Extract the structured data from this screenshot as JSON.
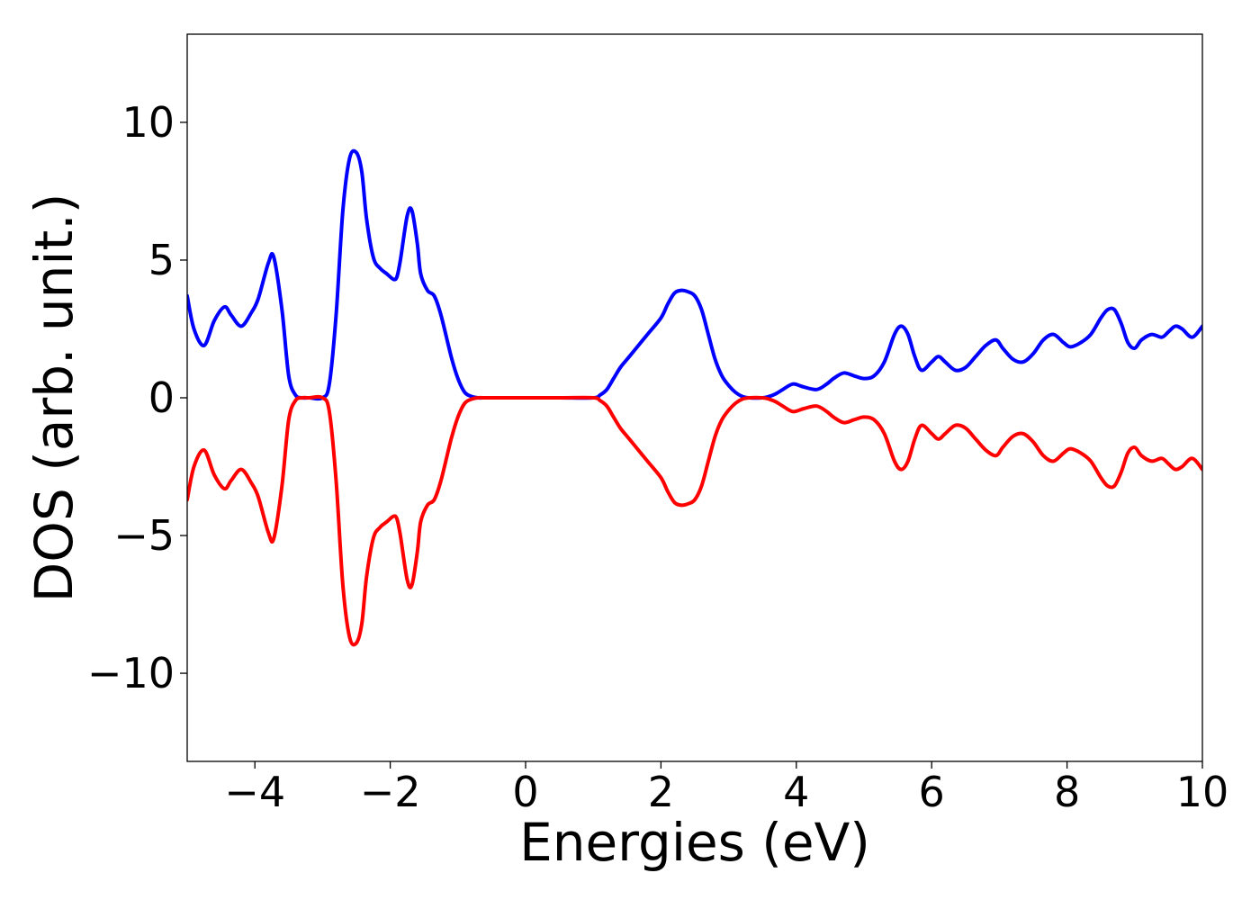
{
  "chart_data": {
    "type": "line",
    "title": "",
    "xlabel": "Energies (eV)",
    "ylabel": "DOS (arb. unit.)",
    "xlim": [
      -5,
      10
    ],
    "ylim": [
      -13.2,
      13.2
    ],
    "xticks": [
      -4,
      -2,
      0,
      2,
      4,
      6,
      8,
      10
    ],
    "xtick_labels": [
      "−4",
      "−2",
      "0",
      "2",
      "4",
      "6",
      "8",
      "10"
    ],
    "yticks": [
      -10,
      -5,
      0,
      5,
      10
    ],
    "ytick_labels": [
      "−10",
      "−5",
      "0",
      "5",
      "10"
    ],
    "grid": false,
    "legend": "none",
    "series": [
      {
        "color": "#0000ff",
        "x": [
          -5.0,
          -4.9,
          -4.75,
          -4.6,
          -4.45,
          -4.35,
          -4.2,
          -4.05,
          -3.95,
          -3.8,
          -3.72,
          -3.6,
          -3.5,
          -3.4,
          -3.3,
          -3.2,
          -3.0,
          -2.9,
          -2.8,
          -2.7,
          -2.6,
          -2.5,
          -2.42,
          -2.35,
          -2.25,
          -2.15,
          -2.05,
          -1.95,
          -1.9,
          -1.85,
          -1.75,
          -1.68,
          -1.6,
          -1.55,
          -1.45,
          -1.35,
          -1.25,
          -1.1,
          -1.0,
          -0.9,
          -0.8,
          -0.7,
          -0.6,
          -0.5,
          -0.3,
          0.0,
          0.5,
          1.0,
          1.1,
          1.2,
          1.3,
          1.4,
          1.5,
          1.6,
          1.8,
          2.0,
          2.1,
          2.2,
          2.3,
          2.4,
          2.5,
          2.6,
          2.7,
          2.8,
          2.9,
          3.0,
          3.1,
          3.2,
          3.3,
          3.5,
          3.6,
          3.7,
          3.8,
          3.95,
          4.1,
          4.3,
          4.45,
          4.55,
          4.7,
          4.85,
          5.0,
          5.15,
          5.3,
          5.45,
          5.55,
          5.65,
          5.75,
          5.85,
          6.0,
          6.1,
          6.2,
          6.35,
          6.5,
          6.65,
          6.8,
          6.95,
          7.05,
          7.2,
          7.35,
          7.5,
          7.65,
          7.8,
          7.95,
          8.05,
          8.2,
          8.35,
          8.5,
          8.6,
          8.7,
          8.8,
          8.9,
          9.0,
          9.1,
          9.25,
          9.4,
          9.5,
          9.6,
          9.7,
          9.85,
          10.0
        ],
        "y": [
          3.7,
          2.5,
          1.9,
          2.8,
          3.3,
          3.0,
          2.6,
          3.1,
          3.6,
          4.9,
          5.1,
          3.2,
          0.8,
          0.1,
          0.0,
          0.0,
          0.0,
          0.5,
          3.0,
          6.8,
          8.7,
          8.9,
          8.2,
          6.5,
          5.1,
          4.7,
          4.5,
          4.3,
          4.4,
          5.0,
          6.6,
          6.8,
          5.6,
          4.5,
          3.9,
          3.7,
          3.0,
          1.5,
          0.7,
          0.2,
          0.05,
          0.0,
          0.0,
          0.0,
          0.0,
          0.0,
          0.0,
          0.0,
          0.1,
          0.3,
          0.7,
          1.1,
          1.4,
          1.7,
          2.3,
          2.9,
          3.4,
          3.8,
          3.9,
          3.85,
          3.7,
          3.2,
          2.3,
          1.4,
          0.8,
          0.45,
          0.2,
          0.05,
          0.0,
          0.0,
          0.05,
          0.15,
          0.3,
          0.5,
          0.4,
          0.3,
          0.5,
          0.7,
          0.9,
          0.8,
          0.7,
          0.8,
          1.3,
          2.3,
          2.6,
          2.3,
          1.5,
          1.0,
          1.3,
          1.5,
          1.3,
          1.0,
          1.1,
          1.5,
          1.9,
          2.1,
          1.8,
          1.4,
          1.3,
          1.6,
          2.1,
          2.3,
          2.0,
          1.85,
          2.0,
          2.3,
          2.9,
          3.2,
          3.2,
          2.7,
          2.0,
          1.8,
          2.1,
          2.3,
          2.2,
          2.4,
          2.6,
          2.5,
          2.2,
          2.6
        ]
      },
      {
        "color": "#ff0000",
        "x": [
          -5.0,
          -4.9,
          -4.75,
          -4.6,
          -4.45,
          -4.35,
          -4.2,
          -4.05,
          -3.95,
          -3.8,
          -3.72,
          -3.6,
          -3.5,
          -3.4,
          -3.3,
          -3.2,
          -3.0,
          -2.9,
          -2.8,
          -2.7,
          -2.6,
          -2.5,
          -2.42,
          -2.35,
          -2.25,
          -2.15,
          -2.05,
          -1.95,
          -1.9,
          -1.85,
          -1.75,
          -1.68,
          -1.6,
          -1.55,
          -1.45,
          -1.35,
          -1.25,
          -1.1,
          -1.0,
          -0.9,
          -0.8,
          -0.7,
          -0.6,
          -0.5,
          -0.3,
          0.0,
          0.5,
          1.0,
          1.1,
          1.2,
          1.3,
          1.4,
          1.5,
          1.6,
          1.8,
          2.0,
          2.1,
          2.2,
          2.3,
          2.4,
          2.5,
          2.6,
          2.7,
          2.8,
          2.9,
          3.0,
          3.1,
          3.2,
          3.3,
          3.5,
          3.6,
          3.7,
          3.8,
          3.95,
          4.1,
          4.3,
          4.45,
          4.55,
          4.7,
          4.85,
          5.0,
          5.15,
          5.3,
          5.45,
          5.55,
          5.65,
          5.75,
          5.85,
          6.0,
          6.1,
          6.2,
          6.35,
          6.5,
          6.65,
          6.8,
          6.95,
          7.05,
          7.2,
          7.35,
          7.5,
          7.65,
          7.8,
          7.95,
          8.05,
          8.2,
          8.35,
          8.5,
          8.6,
          8.7,
          8.8,
          8.9,
          9.0,
          9.1,
          9.25,
          9.4,
          9.5,
          9.6,
          9.7,
          9.85,
          10.0
        ],
        "y": [
          -3.7,
          -2.5,
          -1.9,
          -2.8,
          -3.3,
          -3.0,
          -2.6,
          -3.1,
          -3.6,
          -4.9,
          -5.1,
          -3.2,
          -0.8,
          -0.1,
          0.0,
          0.0,
          0.0,
          -0.5,
          -3.0,
          -6.8,
          -8.7,
          -8.9,
          -8.2,
          -6.5,
          -5.1,
          -4.7,
          -4.5,
          -4.3,
          -4.4,
          -5.0,
          -6.6,
          -6.8,
          -5.6,
          -4.5,
          -3.9,
          -3.7,
          -3.0,
          -1.5,
          -0.7,
          -0.2,
          -0.05,
          0.0,
          0.0,
          0.0,
          0.0,
          0.0,
          0.0,
          0.0,
          -0.1,
          -0.3,
          -0.7,
          -1.1,
          -1.4,
          -1.7,
          -2.3,
          -2.9,
          -3.4,
          -3.8,
          -3.9,
          -3.85,
          -3.7,
          -3.2,
          -2.3,
          -1.4,
          -0.8,
          -0.45,
          -0.2,
          -0.05,
          0.0,
          0.0,
          -0.05,
          -0.15,
          -0.3,
          -0.5,
          -0.4,
          -0.3,
          -0.5,
          -0.7,
          -0.9,
          -0.8,
          -0.7,
          -0.8,
          -1.3,
          -2.3,
          -2.6,
          -2.3,
          -1.5,
          -1.0,
          -1.3,
          -1.5,
          -1.3,
          -1.0,
          -1.1,
          -1.5,
          -1.9,
          -2.1,
          -1.8,
          -1.4,
          -1.3,
          -1.6,
          -2.1,
          -2.3,
          -2.0,
          -1.85,
          -2.0,
          -2.3,
          -2.9,
          -3.2,
          -3.2,
          -2.7,
          -2.0,
          -1.8,
          -2.1,
          -2.3,
          -2.2,
          -2.4,
          -2.6,
          -2.5,
          -2.2,
          -2.6
        ]
      }
    ]
  }
}
